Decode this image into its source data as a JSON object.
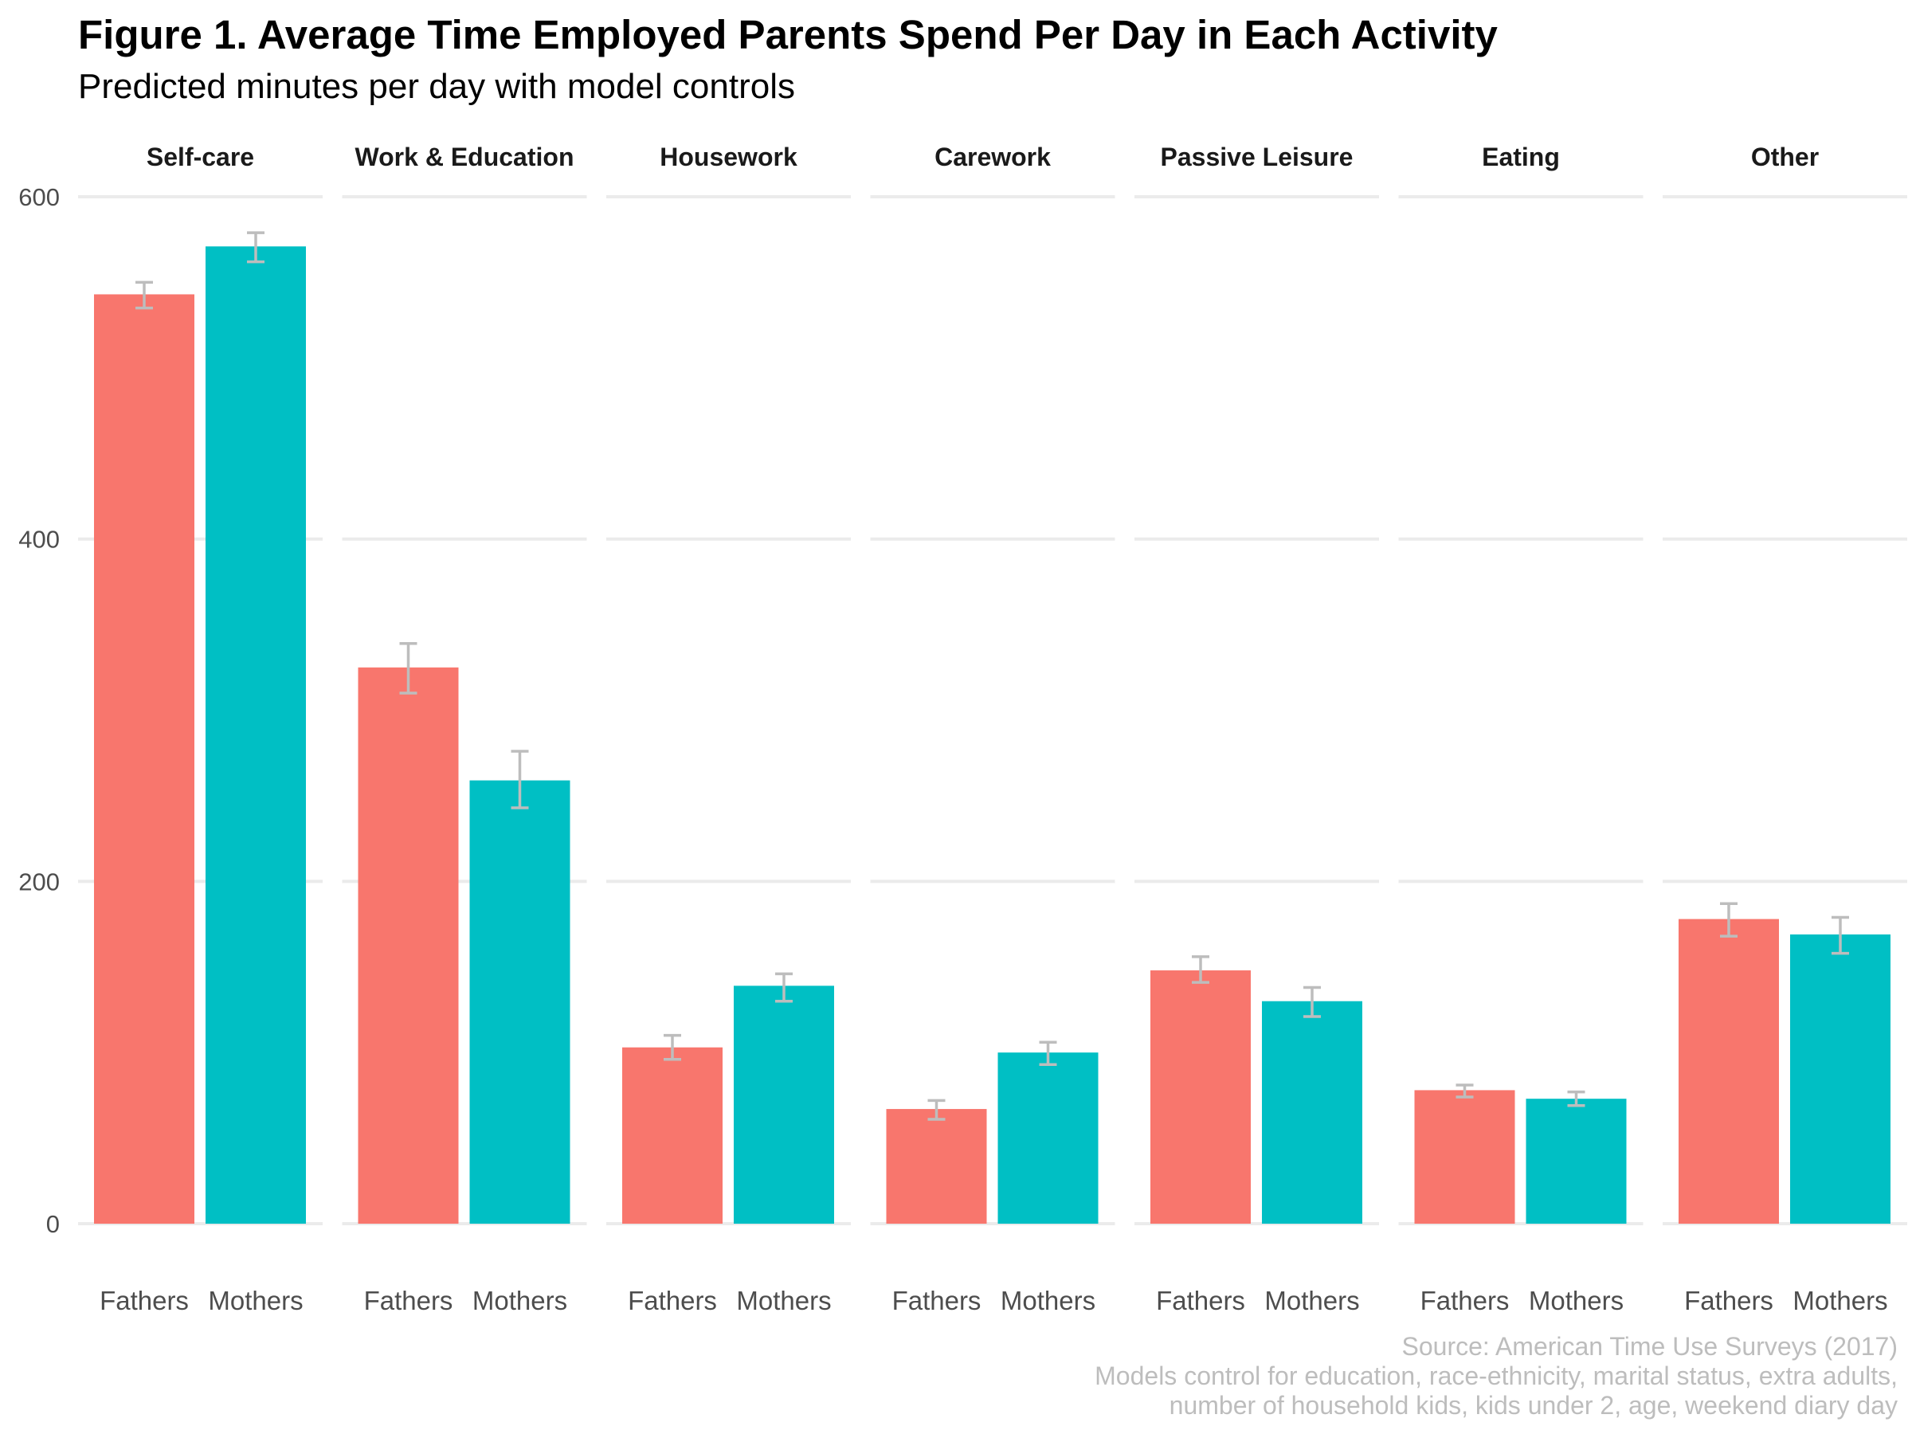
{
  "title": "Figure 1. Average Time Employed Parents Spend Per Day in Each Activity",
  "subtitle": "Predicted minutes per day with model controls",
  "caption": [
    "Source: American Time Use Surveys (2017)",
    "Models control for education, race-ethnicity, marital status, extra adults,",
    "number of household kids, kids under 2, age, weekend diary day"
  ],
  "chart_data": {
    "type": "bar",
    "facets": [
      "Self-care",
      "Work & Education",
      "Housework",
      "Carework",
      "Passive Leisure",
      "Eating",
      "Other"
    ],
    "categories": [
      "Fathers",
      "Mothers"
    ],
    "colors": {
      "Fathers": "#F8766D",
      "Mothers": "#00BFC4",
      "errorbar": "#bdbdbd",
      "grid": "#ebebeb"
    },
    "ylim": [
      0,
      600
    ],
    "yticks": [
      0,
      200,
      400,
      600
    ],
    "grid": true,
    "legend": "none",
    "series": [
      {
        "facet": "Self-care",
        "values": [
          543,
          571
        ],
        "ci_low": [
          535,
          562
        ],
        "ci_high": [
          550,
          579
        ]
      },
      {
        "facet": "Work & Education",
        "values": [
          325,
          259
        ],
        "ci_low": [
          310,
          243
        ],
        "ci_high": [
          339,
          276
        ]
      },
      {
        "facet": "Housework",
        "values": [
          103,
          139
        ],
        "ci_low": [
          96,
          130
        ],
        "ci_high": [
          110,
          146
        ]
      },
      {
        "facet": "Carework",
        "values": [
          67,
          100
        ],
        "ci_low": [
          61,
          93
        ],
        "ci_high": [
          72,
          106
        ]
      },
      {
        "facet": "Passive Leisure",
        "values": [
          148,
          130
        ],
        "ci_low": [
          141,
          121
        ],
        "ci_high": [
          156,
          138
        ]
      },
      {
        "facet": "Eating",
        "values": [
          78,
          73
        ],
        "ci_low": [
          74,
          69
        ],
        "ci_high": [
          81,
          77
        ]
      },
      {
        "facet": "Other",
        "values": [
          178,
          169
        ],
        "ci_low": [
          168,
          158
        ],
        "ci_high": [
          187,
          179
        ]
      }
    ]
  }
}
